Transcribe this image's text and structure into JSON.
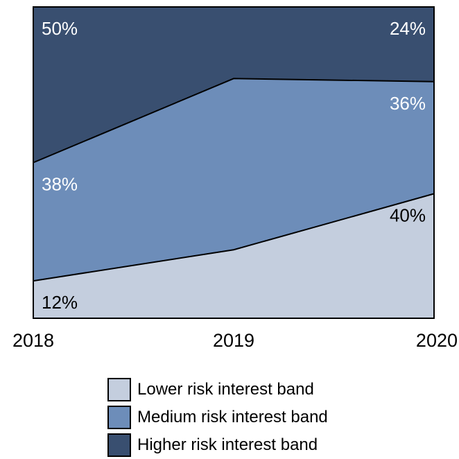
{
  "chart_data": {
    "type": "area",
    "stacked": true,
    "normalized_percent": true,
    "categories": [
      "2018",
      "2019",
      "2020"
    ],
    "series": [
      {
        "name": "Lower risk interest band",
        "values": [
          12,
          22,
          40
        ],
        "color": "#c4cede",
        "labels": [
          "12%",
          "",
          "40%"
        ],
        "label_color": "#000000"
      },
      {
        "name": "Medium risk interest band",
        "values": [
          38,
          55,
          36
        ],
        "color": "#6d8db9",
        "labels": [
          "38%",
          "",
          "36%"
        ],
        "label_color": "#ffffff"
      },
      {
        "name": "Higher risk interest band",
        "values": [
          50,
          23,
          24
        ],
        "color": "#394f70",
        "labels": [
          "50%",
          "",
          "24%"
        ],
        "label_color": "#ffffff"
      }
    ],
    "ylim": [
      0,
      100
    ],
    "grid": false,
    "legend_position": "bottom"
  }
}
